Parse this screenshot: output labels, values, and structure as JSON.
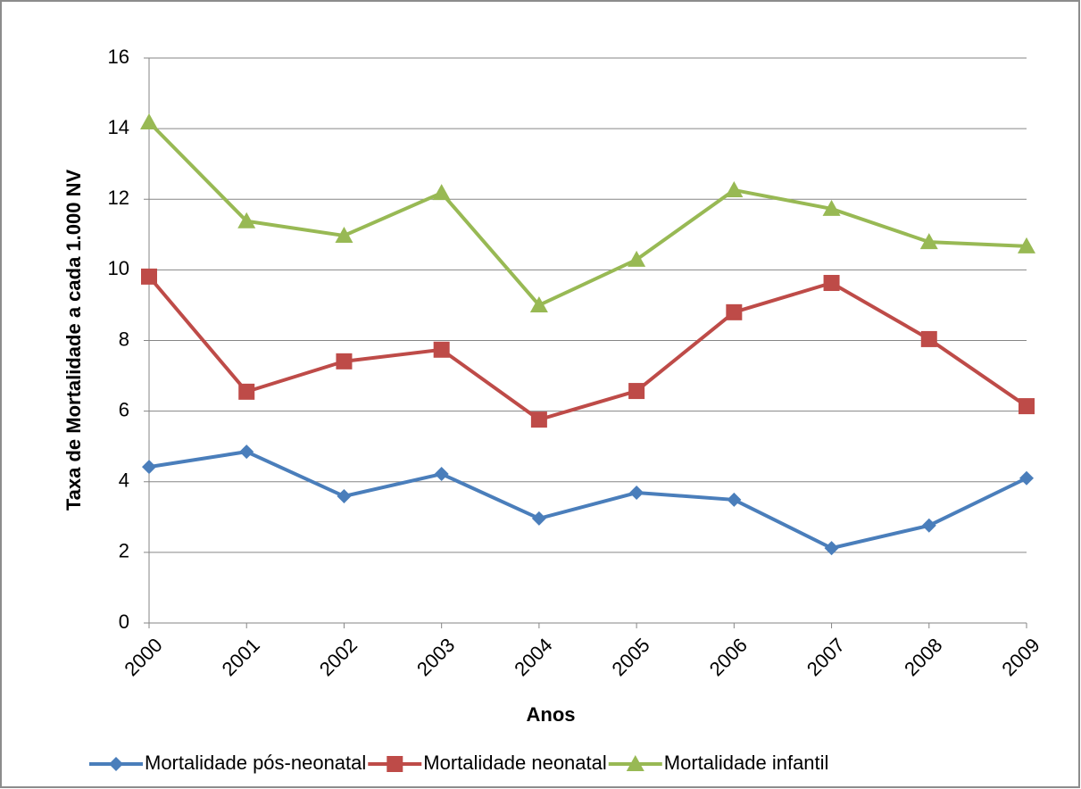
{
  "chart_data": {
    "type": "line",
    "x_label": "Anos",
    "y_label": "Taxa de Mortalidade a cada 1.000 NV",
    "categories": [
      "2000",
      "2001",
      "2002",
      "2003",
      "2004",
      "2005",
      "2006",
      "2007",
      "2008",
      "2009"
    ],
    "series": [
      {
        "name": "Mortalidade pós-neonatal",
        "color": "#4a7ebb",
        "marker": "diamond",
        "values": [
          4.42,
          4.85,
          3.59,
          4.22,
          2.96,
          3.69,
          3.49,
          2.12,
          2.76,
          4.1
        ]
      },
      {
        "name": "Mortalidade neonatal",
        "color": "#be4b48",
        "marker": "square",
        "values": [
          9.81,
          6.55,
          7.41,
          7.74,
          5.76,
          6.57,
          8.8,
          9.63,
          8.04,
          6.14
        ]
      },
      {
        "name": "Mortalidade infantil",
        "color": "#98b954",
        "marker": "triangle",
        "values": [
          14.18,
          11.38,
          10.97,
          12.18,
          9.0,
          10.29,
          12.26,
          11.73,
          10.79,
          10.67
        ]
      }
    ],
    "ylim": [
      0,
      16
    ],
    "yticks": [
      0,
      2,
      4,
      6,
      8,
      10,
      12,
      14,
      16
    ],
    "grid": true,
    "legend": "bottom"
  }
}
